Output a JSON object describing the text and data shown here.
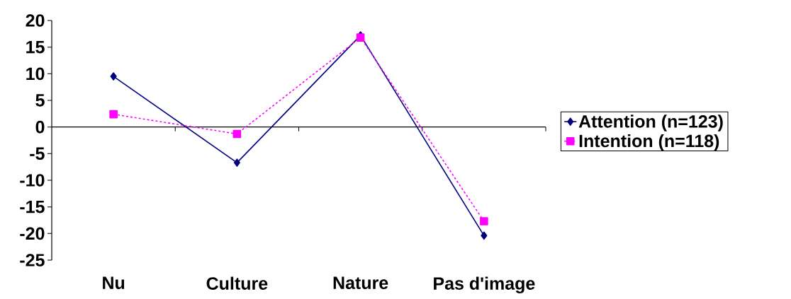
{
  "chart_data": {
    "type": "line",
    "categories": [
      "Nu",
      "Culture",
      "Nature",
      "Pas d'image"
    ],
    "series": [
      {
        "name": "Attention (n=123)",
        "color": "#000080",
        "values": [
          9.5,
          -6.7,
          17.2,
          -20.4
        ],
        "marker": "diamond",
        "line_style": "solid"
      },
      {
        "name": "Intention (n=118)",
        "color": "#ff00ff",
        "values": [
          2.4,
          -1.3,
          16.8,
          -17.7
        ],
        "marker": "square",
        "line_style": "dashed"
      }
    ],
    "ylim": [
      -25,
      20
    ],
    "yticks": [
      -25,
      -20,
      -15,
      -10,
      -5,
      0,
      5,
      10,
      15,
      20
    ],
    "legend": "right"
  }
}
